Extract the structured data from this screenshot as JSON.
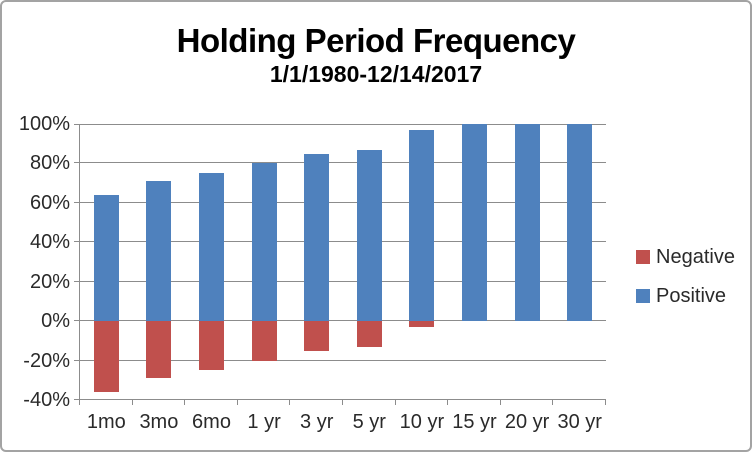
{
  "chart": {
    "title": "Holding Period Frequency",
    "subtitle": "1/1/1980-12/14/2017"
  },
  "legend": {
    "negative_label": "Negative",
    "positive_label": "Positive"
  },
  "colors": {
    "positive": "#4F81BD",
    "negative": "#C0504D",
    "gridline": "#8C8C8C",
    "axis_text": "#2A2A2A",
    "title_text": "#000000",
    "frame_border": "#A3A3A3"
  },
  "chart_data": {
    "type": "bar",
    "stacked": true,
    "title": "Holding Period Frequency",
    "subtitle": "1/1/1980-12/14/2017",
    "categories": [
      "1mo",
      "3mo",
      "6mo",
      "1 yr",
      "3 yr",
      "5 yr",
      "10 yr",
      "15 yr",
      "20 yr",
      "30 yr"
    ],
    "series": [
      {
        "name": "Negative",
        "color": "#C0504D",
        "values": [
          -36,
          -29,
          -25,
          -20,
          -15,
          -13,
          -3,
          0,
          0,
          0
        ]
      },
      {
        "name": "Positive",
        "color": "#4F81BD",
        "values": [
          64,
          71,
          75,
          80,
          85,
          87,
          97,
          100,
          100,
          100
        ]
      }
    ],
    "xlabel": "",
    "ylabel": "",
    "ylim": [
      -40,
      100
    ],
    "yticks": [
      100,
      80,
      60,
      40,
      20,
      0,
      -20,
      -40
    ],
    "ytick_labels": [
      "100%",
      "80%",
      "60%",
      "40%",
      "20%",
      "0%",
      "-20%",
      "-40%"
    ],
    "grid": true,
    "legend_position": "right"
  }
}
